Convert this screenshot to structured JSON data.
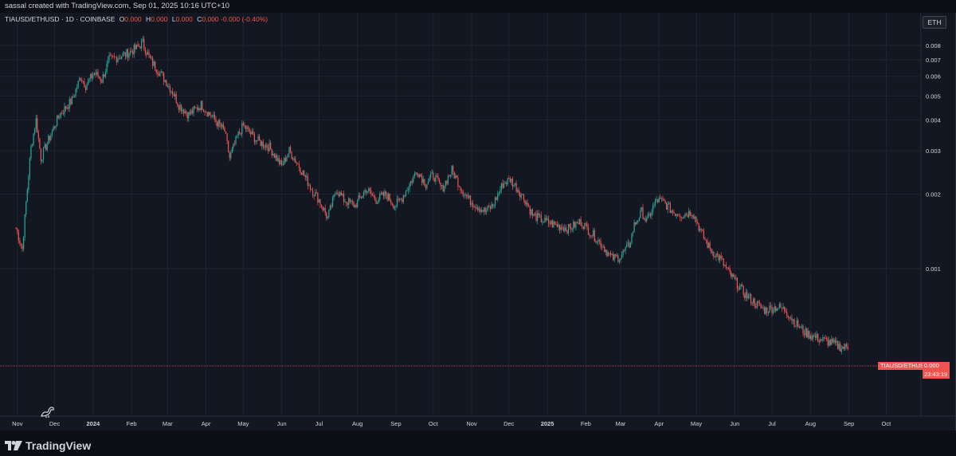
{
  "header": {
    "text": "sassal created with TradingView.com, Sep 01, 2025 10:16 UTC+10"
  },
  "legend": {
    "symbol": "TIAUSD/ETHUSD · 1D · COINBASE",
    "open_label": "O",
    "open_value": "0.000",
    "high_label": "H",
    "high_value": "0.000",
    "low_label": "L",
    "low_value": "0.000",
    "close_label": "C",
    "close_value": "0.000",
    "change": "-0.000 (-0.40%)"
  },
  "currency_badge": "ETH",
  "price_tag": {
    "symbol": "TIAUSD/ETHUSD",
    "value": "0.000",
    "countdown": "23:43:19"
  },
  "footer": {
    "brand": "TradingView"
  },
  "colors": {
    "up": "#26a69a",
    "down": "#ef5350",
    "background": "#131722",
    "grid": "#1f2430"
  },
  "chart_data": {
    "type": "candlestick",
    "scale": "log",
    "y_ticks": [
      0.008,
      0.007,
      0.006,
      0.005,
      0.004,
      0.003,
      0.002,
      0.001
    ],
    "y_tick_labels": [
      "0.008",
      "0.007",
      "0.006",
      "0.005",
      "0.004",
      "0.003",
      "0.002",
      "0.001"
    ],
    "x_ticks": [
      "Nov",
      "Dec",
      "2024",
      "Feb",
      "Mar",
      "Apr",
      "May",
      "Jun",
      "Jul",
      "Aug",
      "Sep",
      "Oct",
      "Nov",
      "Dec",
      "2025",
      "Feb",
      "Mar",
      "Apr",
      "May",
      "Jun",
      "Jul",
      "Aug",
      "Sep",
      "Oct"
    ],
    "x_tick_dates": [
      "2023-11-01",
      "2023-12-01",
      "2024-01-01",
      "2024-02-01",
      "2024-03-01",
      "2024-04-01",
      "2024-05-01",
      "2024-06-01",
      "2024-07-01",
      "2024-08-01",
      "2024-09-01",
      "2024-10-01",
      "2024-11-01",
      "2024-12-01",
      "2025-01-01",
      "2025-02-01",
      "2025-03-01",
      "2025-04-01",
      "2025-05-01",
      "2025-06-01",
      "2025-07-01",
      "2025-08-01",
      "2025-09-01",
      "2025-10-01"
    ],
    "close_path": [
      [
        "2023-10-31",
        0.00145
      ],
      [
        "2023-11-05",
        0.0012
      ],
      [
        "2023-11-08",
        0.00185
      ],
      [
        "2023-11-12",
        0.0031
      ],
      [
        "2023-11-16",
        0.004
      ],
      [
        "2023-11-20",
        0.0028
      ],
      [
        "2023-11-28",
        0.0035
      ],
      [
        "2023-12-05",
        0.0042
      ],
      [
        "2023-12-15",
        0.0048
      ],
      [
        "2023-12-22",
        0.006
      ],
      [
        "2023-12-26",
        0.0055
      ],
      [
        "2024-01-02",
        0.0062
      ],
      [
        "2024-01-08",
        0.0058
      ],
      [
        "2024-01-14",
        0.007
      ],
      [
        "2024-01-22",
        0.0072
      ],
      [
        "2024-01-30",
        0.0075
      ],
      [
        "2024-02-05",
        0.0078
      ],
      [
        "2024-02-10",
        0.0082
      ],
      [
        "2024-02-16",
        0.007
      ],
      [
        "2024-02-26",
        0.006
      ],
      [
        "2024-03-05",
        0.0052
      ],
      [
        "2024-03-10",
        0.0046
      ],
      [
        "2024-03-18",
        0.0042
      ],
      [
        "2024-03-28",
        0.0046
      ],
      [
        "2024-04-08",
        0.004
      ],
      [
        "2024-04-16",
        0.0036
      ],
      [
        "2024-04-20",
        0.0028
      ],
      [
        "2024-04-26",
        0.0034
      ],
      [
        "2024-05-01",
        0.0038
      ],
      [
        "2024-05-12",
        0.0033
      ],
      [
        "2024-05-22",
        0.0031
      ],
      [
        "2024-06-01",
        0.0026
      ],
      [
        "2024-06-07",
        0.003
      ],
      [
        "2024-06-15",
        0.0026
      ],
      [
        "2024-06-25",
        0.0021
      ],
      [
        "2024-07-01",
        0.0019
      ],
      [
        "2024-07-08",
        0.0016
      ],
      [
        "2024-07-15",
        0.0021
      ],
      [
        "2024-07-21",
        0.0019
      ],
      [
        "2024-07-30",
        0.0018
      ],
      [
        "2024-08-08",
        0.0021
      ],
      [
        "2024-08-16",
        0.0019
      ],
      [
        "2024-08-24",
        0.002
      ],
      [
        "2024-08-31",
        0.0018
      ],
      [
        "2024-09-05",
        0.0019
      ],
      [
        "2024-09-12",
        0.0022
      ],
      [
        "2024-09-18",
        0.0025
      ],
      [
        "2024-09-25",
        0.0022
      ],
      [
        "2024-10-01",
        0.0024
      ],
      [
        "2024-10-08",
        0.0021
      ],
      [
        "2024-10-16",
        0.0025
      ],
      [
        "2024-10-24",
        0.0021
      ],
      [
        "2024-10-30",
        0.0019
      ],
      [
        "2024-11-05",
        0.0018
      ],
      [
        "2024-11-12",
        0.0017
      ],
      [
        "2024-11-18",
        0.0018
      ],
      [
        "2024-11-26",
        0.0022
      ],
      [
        "2024-12-02",
        0.0023
      ],
      [
        "2024-12-08",
        0.0021
      ],
      [
        "2024-12-14",
        0.0019
      ],
      [
        "2024-12-20",
        0.00165
      ],
      [
        "2024-12-30",
        0.00155
      ],
      [
        "2025-01-08",
        0.0015
      ],
      [
        "2025-01-18",
        0.00145
      ],
      [
        "2025-01-28",
        0.00155
      ],
      [
        "2025-02-05",
        0.0014
      ],
      [
        "2025-02-14",
        0.00125
      ],
      [
        "2025-02-22",
        0.0011
      ],
      [
        "2025-03-01",
        0.00112
      ],
      [
        "2025-03-08",
        0.00125
      ],
      [
        "2025-03-12",
        0.0015
      ],
      [
        "2025-03-18",
        0.0017
      ],
      [
        "2025-03-22",
        0.00155
      ],
      [
        "2025-03-30",
        0.0019
      ],
      [
        "2025-04-05",
        0.00185
      ],
      [
        "2025-04-12",
        0.0017
      ],
      [
        "2025-04-20",
        0.00165
      ],
      [
        "2025-04-28",
        0.0017
      ],
      [
        "2025-05-05",
        0.0014
      ],
      [
        "2025-05-12",
        0.0012
      ],
      [
        "2025-05-20",
        0.0011
      ],
      [
        "2025-05-28",
        0.00095
      ],
      [
        "2025-06-08",
        0.0008
      ],
      [
        "2025-06-18",
        0.00072
      ],
      [
        "2025-06-25",
        0.00068
      ],
      [
        "2025-07-05",
        0.0007
      ],
      [
        "2025-07-12",
        0.00068
      ],
      [
        "2025-07-20",
        0.0006
      ],
      [
        "2025-07-28",
        0.00055
      ],
      [
        "2025-08-08",
        0.00052
      ],
      [
        "2025-08-18",
        0.0005
      ],
      [
        "2025-08-26",
        0.00048
      ],
      [
        "2025-08-31",
        0.00048
      ]
    ],
    "last_price": 0.00048,
    "last_price_label": "0.000",
    "grid": true,
    "legend": "top-left"
  }
}
